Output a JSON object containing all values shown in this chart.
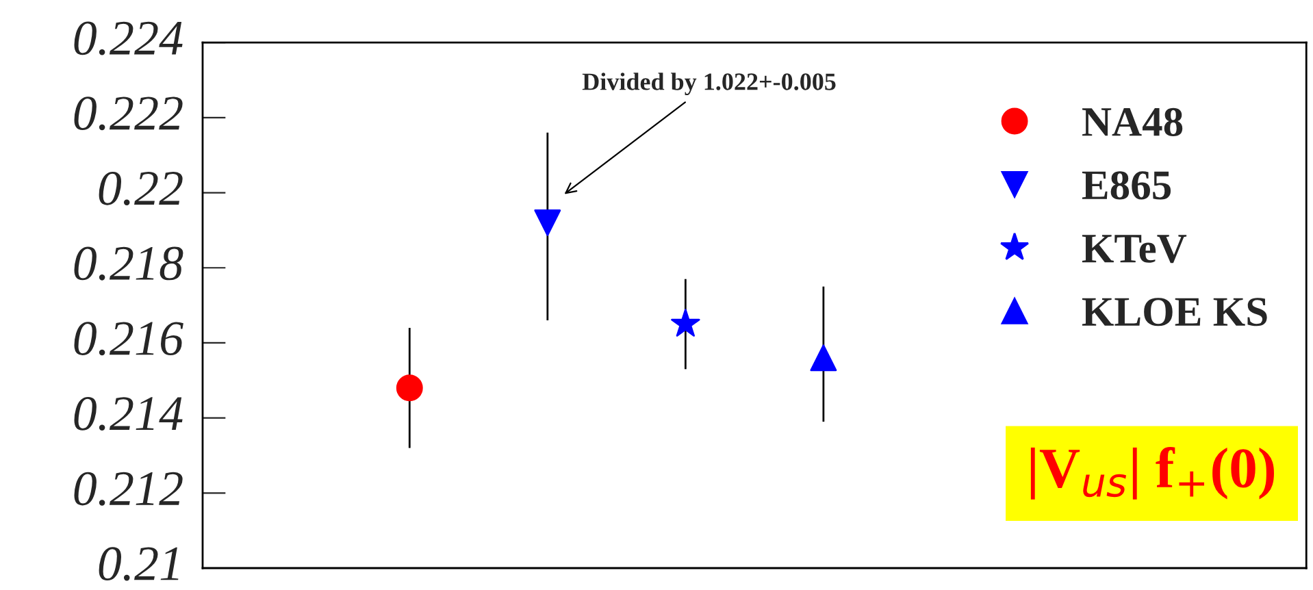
{
  "chart_data": {
    "type": "scatter",
    "title": "|V$_{us}$| f$_{+}$(0)",
    "categories": [
      null,
      null,
      null,
      null,
      null,
      null,
      null,
      null
    ],
    "series": [
      {
        "name": "NA48",
        "color": "#ff0000",
        "marker": "circle",
        "values": [
          null,
          0.2148,
          null,
          null,
          null,
          null,
          null,
          null
        ],
        "errors": [
          null,
          [
            0.2132,
            0.2164
          ],
          null,
          null,
          null,
          null,
          null,
          null
        ]
      },
      {
        "name": "E865",
        "color": "#0000ff",
        "marker": "triangle_down",
        "values": [
          null,
          null,
          0.2192,
          null,
          null,
          null,
          null,
          null
        ],
        "errors": [
          null,
          null,
          [
            0.2166,
            0.2216
          ],
          null,
          null,
          null,
          null,
          null
        ]
      },
      {
        "name": "KTeV",
        "color": "#0000ff",
        "marker": "star",
        "values": [
          null,
          null,
          null,
          0.2165,
          null,
          null,
          null,
          null
        ],
        "errors": [
          null,
          null,
          null,
          [
            0.2153,
            0.2177
          ],
          null,
          null,
          null,
          null
        ]
      },
      {
        "name": "KLOE KS",
        "color": "#0000ff",
        "marker": "triangle",
        "values": [
          null,
          null,
          null,
          null,
          0.2156,
          null,
          null,
          null
        ],
        "errors": [
          null,
          null,
          null,
          null,
          [
            0.2139,
            0.2175
          ],
          null,
          null,
          null
        ]
      }
    ],
    "annotations": [
      "Divided by 1.022+-0.005"
    ],
    "ylim": [
      0.21,
      0.224
    ],
    "yticks": [
      0.21,
      0.212,
      0.214,
      0.216,
      0.218,
      0.22,
      0.222,
      0.224
    ],
    "legend": "top right",
    "tick_labels": "y",
    "grid": false
  }
}
